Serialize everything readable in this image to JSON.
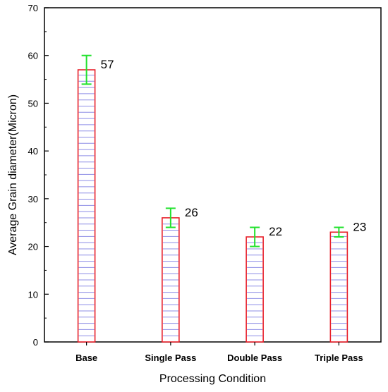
{
  "chart_data": {
    "type": "bar",
    "categories": [
      "Base",
      "Single Pass",
      "Double Pass",
      "Triple Pass"
    ],
    "values": [
      57,
      26,
      22,
      23
    ],
    "error_bars": [
      {
        "low": 54,
        "high": 60
      },
      {
        "low": 24,
        "high": 28
      },
      {
        "low": 20,
        "high": 24
      },
      {
        "low": 22,
        "high": 24
      }
    ],
    "data_labels": [
      "57",
      "26",
      "22",
      "23"
    ],
    "xlabel": "Processing Condition",
    "ylabel": "Average Grain diameter(Micron)",
    "ylim": [
      0,
      70
    ],
    "yticks": [
      0,
      10,
      20,
      30,
      40,
      50,
      60,
      70
    ],
    "grid": false,
    "bar_outline_color": "#e8202a",
    "bar_hatch_color": "#8e8ee6",
    "error_bar_color": "#22e22e"
  }
}
